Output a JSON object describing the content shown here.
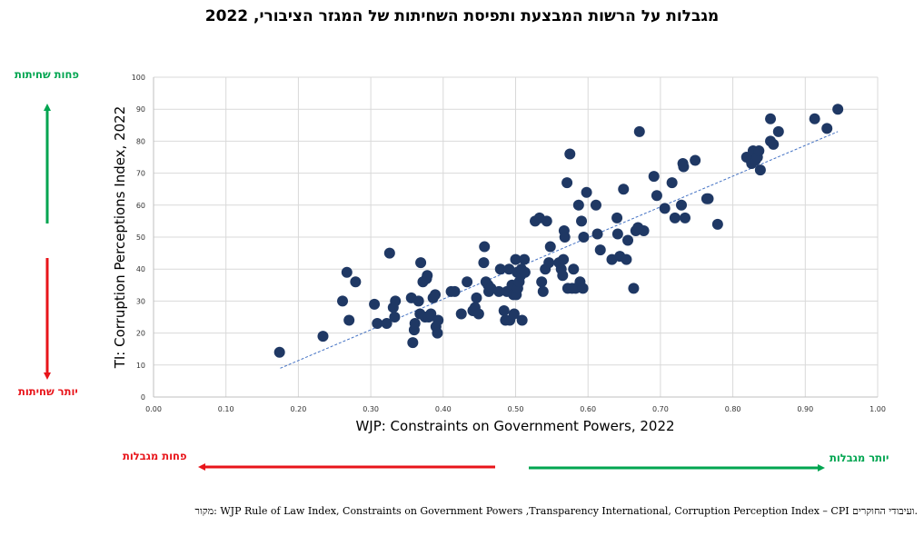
{
  "title": "מגבלות על הרשות המבצעת ותפיסת השחיתות של המגזר הציבורי, 2022",
  "side_labels": {
    "less_corruption": "פחות שחיתות",
    "more_corruption": "יותר שחיתות",
    "less_constraints": "פחות מגבלות",
    "more_constraints": "יותר מגבלות"
  },
  "source": "מקור: WJP Rule of Law Index, Constraints on Government Powers ,Transparency International, Corruption Perception Index – CPI ועיבודי החוקרים.",
  "colors": {
    "points": "#1f3864",
    "trendline": "#4472c4",
    "grid": "#d9d9d9",
    "green_arrow": "#00a550",
    "red_arrow": "#e8141a"
  },
  "chart_data": {
    "type": "scatter",
    "title": "מגבלות על הרשות המבצעת ותפיסת השחיתות של המגזר הציבורי, 2022",
    "xlabel": "WJP: Constraints on Government Powers, 2022",
    "ylabel": "TI: Corruption Perceptions Index, 2022",
    "xlim": [
      0,
      1
    ],
    "ylim": [
      0,
      100
    ],
    "x_ticks": [
      "0.00",
      "0.10",
      "0.20",
      "0.30",
      "0.40",
      "0.50",
      "0.60",
      "0.70",
      "0.80",
      "0.90",
      "1.00"
    ],
    "y_ticks": [
      "0",
      "10",
      "20",
      "30",
      "40",
      "50",
      "60",
      "70",
      "80",
      "90",
      "100"
    ],
    "grid": true,
    "trendline": {
      "style": "dashed",
      "x": [
        0.175,
        0.945
      ],
      "y": [
        9,
        83
      ]
    },
    "points": [
      [
        0.174,
        14
      ],
      [
        0.234,
        19
      ],
      [
        0.261,
        30
      ],
      [
        0.267,
        39
      ],
      [
        0.27,
        24
      ],
      [
        0.279,
        36
      ],
      [
        0.305,
        29
      ],
      [
        0.309,
        23
      ],
      [
        0.322,
        23
      ],
      [
        0.326,
        45
      ],
      [
        0.331,
        28
      ],
      [
        0.333,
        25
      ],
      [
        0.334,
        30
      ],
      [
        0.356,
        31
      ],
      [
        0.358,
        17
      ],
      [
        0.36,
        21
      ],
      [
        0.361,
        23
      ],
      [
        0.366,
        30
      ],
      [
        0.368,
        26
      ],
      [
        0.369,
        42
      ],
      [
        0.372,
        36
      ],
      [
        0.375,
        25
      ],
      [
        0.377,
        37
      ],
      [
        0.378,
        38
      ],
      [
        0.38,
        25
      ],
      [
        0.383,
        26
      ],
      [
        0.386,
        31
      ],
      [
        0.389,
        32
      ],
      [
        0.39,
        22
      ],
      [
        0.392,
        20
      ],
      [
        0.393,
        24
      ],
      [
        0.411,
        33
      ],
      [
        0.416,
        33
      ],
      [
        0.425,
        26
      ],
      [
        0.433,
        36
      ],
      [
        0.441,
        27
      ],
      [
        0.444,
        28
      ],
      [
        0.446,
        31
      ],
      [
        0.449,
        26
      ],
      [
        0.456,
        42
      ],
      [
        0.457,
        47
      ],
      [
        0.459,
        36
      ],
      [
        0.462,
        35
      ],
      [
        0.463,
        33
      ],
      [
        0.466,
        34
      ],
      [
        0.477,
        33
      ],
      [
        0.479,
        40
      ],
      [
        0.484,
        27
      ],
      [
        0.486,
        24
      ],
      [
        0.488,
        33
      ],
      [
        0.491,
        40
      ],
      [
        0.492,
        24
      ],
      [
        0.495,
        35
      ],
      [
        0.497,
        32
      ],
      [
        0.498,
        26
      ],
      [
        0.5,
        43
      ],
      [
        0.501,
        32
      ],
      [
        0.502,
        39
      ],
      [
        0.503,
        34
      ],
      [
        0.505,
        36
      ],
      [
        0.507,
        38
      ],
      [
        0.508,
        40
      ],
      [
        0.509,
        24
      ],
      [
        0.512,
        43
      ],
      [
        0.513,
        39
      ],
      [
        0.527,
        55
      ],
      [
        0.533,
        56
      ],
      [
        0.536,
        36
      ],
      [
        0.538,
        33
      ],
      [
        0.541,
        40
      ],
      [
        0.543,
        55
      ],
      [
        0.546,
        42
      ],
      [
        0.548,
        47
      ],
      [
        0.56,
        42
      ],
      [
        0.563,
        40
      ],
      [
        0.565,
        38
      ],
      [
        0.566,
        43
      ],
      [
        0.567,
        52
      ],
      [
        0.568,
        50
      ],
      [
        0.571,
        67
      ],
      [
        0.572,
        34
      ],
      [
        0.575,
        76
      ],
      [
        0.578,
        34
      ],
      [
        0.58,
        40
      ],
      [
        0.583,
        34
      ],
      [
        0.587,
        60
      ],
      [
        0.589,
        36
      ],
      [
        0.591,
        55
      ],
      [
        0.593,
        34
      ],
      [
        0.594,
        50
      ],
      [
        0.598,
        64
      ],
      [
        0.611,
        60
      ],
      [
        0.613,
        51
      ],
      [
        0.617,
        46
      ],
      [
        0.633,
        43
      ],
      [
        0.64,
        56
      ],
      [
        0.641,
        51
      ],
      [
        0.644,
        44
      ],
      [
        0.649,
        65
      ],
      [
        0.653,
        43
      ],
      [
        0.655,
        49
      ],
      [
        0.663,
        34
      ],
      [
        0.666,
        52
      ],
      [
        0.669,
        53
      ],
      [
        0.671,
        83
      ],
      [
        0.677,
        52
      ],
      [
        0.691,
        69
      ],
      [
        0.695,
        63
      ],
      [
        0.706,
        59
      ],
      [
        0.716,
        67
      ],
      [
        0.72,
        56
      ],
      [
        0.729,
        60
      ],
      [
        0.731,
        73
      ],
      [
        0.732,
        72
      ],
      [
        0.734,
        56
      ],
      [
        0.748,
        74
      ],
      [
        0.764,
        62
      ],
      [
        0.766,
        62
      ],
      [
        0.779,
        54
      ],
      [
        0.819,
        75
      ],
      [
        0.825,
        74
      ],
      [
        0.826,
        73
      ],
      [
        0.828,
        77
      ],
      [
        0.831,
        74
      ],
      [
        0.834,
        75
      ],
      [
        0.836,
        77
      ],
      [
        0.838,
        71
      ],
      [
        0.852,
        87
      ],
      [
        0.852,
        80
      ],
      [
        0.856,
        79
      ],
      [
        0.863,
        83
      ],
      [
        0.913,
        87
      ],
      [
        0.93,
        84
      ],
      [
        0.945,
        90
      ]
    ]
  }
}
